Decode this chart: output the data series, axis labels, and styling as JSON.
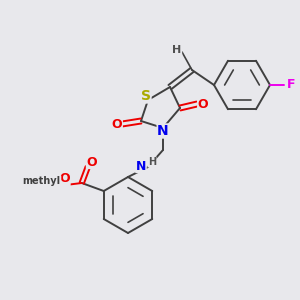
{
  "bg_color": "#e8e8ec",
  "atom_colors": {
    "S": "#aaaa00",
    "N": "#0000ee",
    "O": "#ee0000",
    "F": "#ee00ee",
    "C": "#404040",
    "H": "#505050"
  },
  "bond_color": "#404040",
  "bond_lw": 1.4,
  "double_sep": 3.0,
  "font_size": 9
}
